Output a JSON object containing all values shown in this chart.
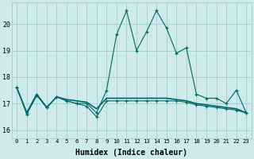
{
  "xlabel": "Humidex (Indice chaleur)",
  "ylabel": "",
  "background_color": "#ceeaea",
  "grid_color": "#a0c8c8",
  "line_color": "#006868",
  "xlim": [
    -0.5,
    23.5
  ],
  "ylim": [
    15.7,
    20.8
  ],
  "yticks": [
    16,
    17,
    18,
    19,
    20
  ],
  "xticks": [
    0,
    1,
    2,
    3,
    4,
    5,
    6,
    7,
    8,
    9,
    10,
    11,
    12,
    13,
    14,
    15,
    16,
    17,
    18,
    19,
    20,
    21,
    22,
    23
  ],
  "series1": [
    17.6,
    16.6,
    17.3,
    16.85,
    17.25,
    17.1,
    17.0,
    17.0,
    16.65,
    17.5,
    19.6,
    20.5,
    19.0,
    19.7,
    20.5,
    19.85,
    18.9,
    19.1,
    17.35,
    17.2,
    17.2,
    17.0,
    17.5,
    16.65
  ],
  "series2": [
    17.6,
    16.65,
    17.35,
    16.85,
    17.25,
    17.15,
    17.1,
    17.05,
    16.8,
    17.2,
    17.2,
    17.2,
    17.2,
    17.2,
    17.2,
    17.2,
    17.15,
    17.1,
    17.0,
    16.95,
    16.9,
    16.85,
    16.8,
    16.65
  ],
  "series3": [
    17.6,
    16.65,
    17.35,
    16.85,
    17.25,
    17.1,
    17.0,
    16.9,
    16.5,
    17.1,
    17.1,
    17.1,
    17.1,
    17.1,
    17.1,
    17.1,
    17.1,
    17.05,
    16.95,
    16.9,
    16.85,
    16.8,
    16.75,
    16.65
  ]
}
